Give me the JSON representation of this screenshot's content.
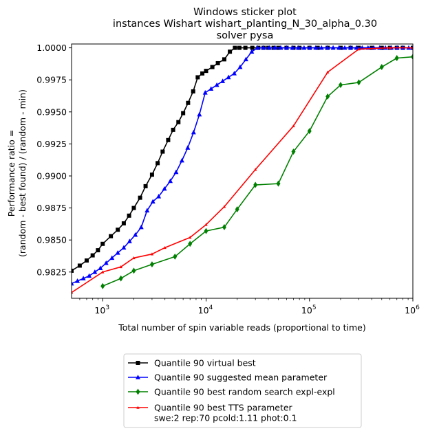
{
  "chart_data": {
    "type": "line",
    "title_lines": [
      "Windows sticker plot",
      "instances Wishart wishart_planting_N_30_alpha_0.30",
      "solver pysa"
    ],
    "xlabel": "Total number of spin variable reads (proportional to time)",
    "ylabel_lines": [
      "Performance ratio =",
      "(random - best found) / (random - min)"
    ],
    "xscale": "log",
    "xlim": [
      500,
      1000000
    ],
    "ylim": [
      0.98045,
      1.0003
    ],
    "x_ticks": [
      {
        "value": 1000,
        "base": "10",
        "exp": "3"
      },
      {
        "value": 10000,
        "base": "10",
        "exp": "4"
      },
      {
        "value": 100000,
        "base": "10",
        "exp": "5"
      },
      {
        "value": 1000000,
        "base": "10",
        "exp": "6"
      }
    ],
    "y_ticks": [
      {
        "value": 0.9825,
        "label": "0.9825"
      },
      {
        "value": 0.985,
        "label": "0.9850"
      },
      {
        "value": 0.9875,
        "label": "0.9875"
      },
      {
        "value": 0.99,
        "label": "0.9900"
      },
      {
        "value": 0.9925,
        "label": "0.9925"
      },
      {
        "value": 0.995,
        "label": "0.9950"
      },
      {
        "value": 0.9975,
        "label": "0.9975"
      },
      {
        "value": 1.0,
        "label": "1.0000"
      }
    ],
    "legend_position": "below",
    "series": [
      {
        "name": "Quantile 90 virtual best",
        "color": "#000000",
        "marker": "square",
        "x": [
          500,
          600,
          700,
          800,
          900,
          1000,
          1200,
          1400,
          1600,
          1800,
          2000,
          2300,
          2600,
          3000,
          3400,
          3800,
          4300,
          4800,
          5400,
          6000,
          6700,
          7500,
          8300,
          9200,
          10000,
          11500,
          13000,
          15000,
          17000,
          19000,
          21000,
          24000,
          28000,
          32000,
          36000,
          40000,
          45000,
          50000,
          60000,
          70000,
          80000,
          100000,
          120000,
          150000,
          200000,
          250000,
          300000,
          400000,
          500000,
          600000,
          700000,
          800000,
          1000000
        ],
        "y": [
          0.9826,
          0.983,
          0.9834,
          0.9838,
          0.9842,
          0.9847,
          0.9853,
          0.9858,
          0.9863,
          0.9869,
          0.9875,
          0.9883,
          0.9892,
          0.9901,
          0.991,
          0.9919,
          0.9928,
          0.9936,
          0.9942,
          0.9949,
          0.9957,
          0.9966,
          0.9977,
          0.998,
          0.9982,
          0.9985,
          0.9988,
          0.9991,
          0.9997,
          1.0,
          1.0,
          1.0,
          1.0,
          1.0,
          1.0,
          1.0,
          1.0,
          1.0,
          1.0,
          1.0,
          1.0,
          1.0,
          1.0,
          1.0,
          1.0,
          1.0,
          1.0,
          1.0,
          1.0,
          1.0,
          1.0,
          1.0,
          1.0
        ]
      },
      {
        "name": "Quantile 90 suggested mean parameter",
        "color": "#0000ff",
        "marker": "triangle",
        "x": [
          500,
          570,
          650,
          740,
          840,
          950,
          1080,
          1230,
          1400,
          1600,
          1820,
          2070,
          2360,
          2690,
          3060,
          3480,
          3960,
          4510,
          5130,
          5840,
          6650,
          7570,
          8620,
          9810,
          11170,
          12710,
          14470,
          16470,
          18750,
          21340,
          24290,
          27650,
          31470,
          35820,
          40770,
          46410,
          52820,
          60120,
          68430,
          77890,
          88650,
          100900,
          114850,
          130730,
          148800,
          169370,
          192780,
          219430,
          249760,
          284290,
          323590,
          368320,
          419230,
          477180,
          543140,
          618230,
          703690,
          800950,
          911670,
          1000000
        ],
        "y": [
          0.9816,
          0.9818,
          0.982,
          0.9822,
          0.9825,
          0.9828,
          0.9832,
          0.9836,
          0.984,
          0.9844,
          0.9849,
          0.9854,
          0.986,
          0.9873,
          0.988,
          0.9884,
          0.989,
          0.9896,
          0.9903,
          0.9912,
          0.9922,
          0.9934,
          0.9948,
          0.9965,
          0.9968,
          0.9971,
          0.9974,
          0.9977,
          0.998,
          0.9985,
          0.9991,
          0.9997,
          1.0,
          1.0,
          1.0,
          1.0,
          1.0,
          1.0,
          1.0,
          1.0,
          1.0,
          1.0,
          1.0,
          1.0,
          1.0,
          1.0,
          1.0,
          1.0,
          1.0,
          1.0,
          1.0,
          1.0,
          1.0,
          1.0,
          1.0,
          1.0,
          1.0,
          1.0,
          1.0,
          1.0
        ]
      },
      {
        "name": "Quantile 90  best random search expl-expl",
        "color": "#008000",
        "marker": "diamond",
        "x": [
          1000,
          1500,
          2000,
          3000,
          5000,
          7000,
          10000,
          15000,
          20000,
          30000,
          50000,
          70000,
          100000,
          150000,
          200000,
          300000,
          500000,
          700000,
          1000000
        ],
        "y": [
          0.9814,
          0.982,
          0.9826,
          0.9831,
          0.9837,
          0.9847,
          0.9857,
          0.986,
          0.9874,
          0.9893,
          0.9894,
          0.9919,
          0.9935,
          0.9962,
          0.9971,
          0.9973,
          0.9985,
          0.9992,
          0.9993
        ]
      },
      {
        "name": "Quantile 90 best TTS parameter\nswe:2 rep:70 pcold:1.11 phot:0.1",
        "color": "#ff0000",
        "marker": "small-triangle",
        "x": [
          500,
          1000,
          1500,
          2000,
          3000,
          4000,
          7000,
          10000,
          15000,
          30000,
          70000,
          150000,
          300000,
          600000,
          1000000
        ],
        "y": [
          0.9809,
          0.9825,
          0.9829,
          0.9836,
          0.9839,
          0.9844,
          0.9852,
          0.9862,
          0.9876,
          0.9905,
          0.9939,
          0.9981,
          0.9999,
          1.0,
          1.0
        ]
      }
    ]
  }
}
